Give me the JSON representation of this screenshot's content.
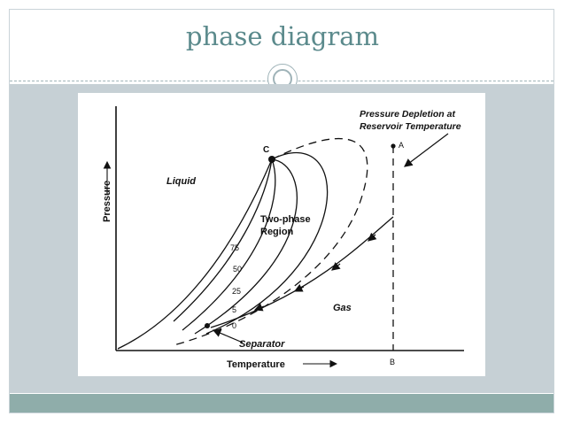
{
  "slide": {
    "title": "phase diagram",
    "colors": {
      "title": "#5b8a8c",
      "band": "#c6d0d5",
      "footer": "#8fadaa"
    }
  },
  "diagram": {
    "annotation_line1": "Pressure Depletion at",
    "annotation_line2": "Reservoir Temperature",
    "point_a": "A",
    "point_b": "B",
    "point_c": "C",
    "liquid_label": "Liquid",
    "two_phase_line1": "Two-phase",
    "two_phase_line2": "Region",
    "gas_label": "Gas",
    "separator_label": "Separator",
    "y_axis_label": "Pressure",
    "x_axis_label": "Temperature",
    "quality_lines": [
      "75",
      "50",
      "25",
      "5",
      "0"
    ]
  }
}
